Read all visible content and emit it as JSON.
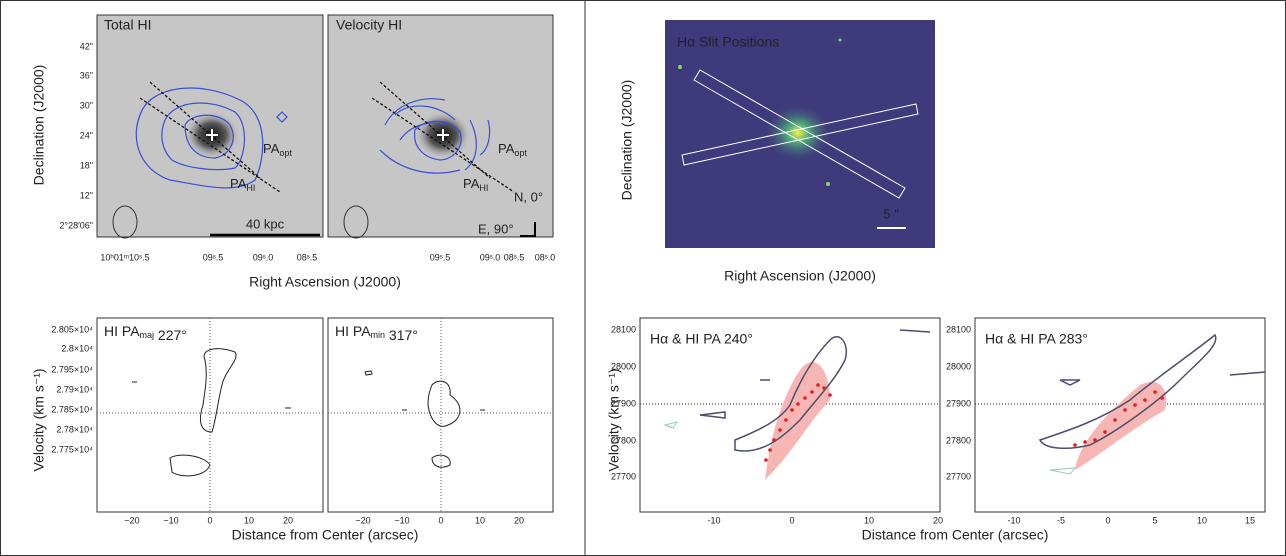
{
  "figure": {
    "top_left": {
      "panel_labels": [
        "Total HI",
        "Velocity HI"
      ],
      "yticks": [
        "42\"",
        "36\"",
        "30\"",
        "24\"",
        "18\"",
        "12\"",
        "2°28′06\""
      ],
      "xticks_1": [
        "10ʰ01ᵐ10ˢ.5",
        "09ˢ.5",
        "09ˢ.0",
        "08ˢ.5"
      ],
      "xticks_2": [
        "09ˢ.5",
        "09ˢ.0",
        "08ˢ.5",
        "08ˢ.0"
      ],
      "xlabel": "Right Ascension (J2000)",
      "ylabel": "Declination (J2000)",
      "pa_opt": {
        "main": "PA",
        "sub": "opt"
      },
      "pa_hi": {
        "main": "PA",
        "sub": "HI"
      },
      "scale": "40 kpc",
      "north": "N, 0°",
      "east": "E, 90°"
    },
    "top_right": {
      "panel_label": "Hα Slit Positions",
      "scale": "5 \"",
      "xlabel": "Right Ascension (J2000)",
      "ylabel": "Declination (J2000)"
    },
    "bottom_left": {
      "panel_labels": [
        {
          "before": "HI PA",
          "sub": "maj",
          "after": " 227°"
        },
        {
          "before": "HI PA",
          "sub": "min",
          "after": " 317°"
        }
      ],
      "yticks": [
        "2.805×10⁴",
        "2.8×10⁴",
        "2.795×10⁴",
        "2.79×10⁴",
        "2.785×10⁴",
        "2.78×10⁴",
        "2.775×10⁴"
      ],
      "xticks": [
        "−20",
        "−10",
        "0",
        "10",
        "20"
      ],
      "xlabel": "Distance from Center (arcsec)",
      "ylabel": "Velocity (km s⁻¹)"
    },
    "bottom_right": {
      "panel_labels": [
        "Hα & HI PA 240°",
        "Hα & HI PA 283°"
      ],
      "yticks": [
        "28100",
        "28000",
        "27900",
        "27800",
        "27700"
      ],
      "xticks_1": [
        "-10",
        "0",
        "10",
        "20"
      ],
      "xticks_2": [
        "-10",
        "-5",
        "0",
        "5",
        "10",
        "15"
      ],
      "xlabel": "Distance from Center (arcsec)",
      "ylabel": "Velocity (km s⁻¹)"
    }
  }
}
